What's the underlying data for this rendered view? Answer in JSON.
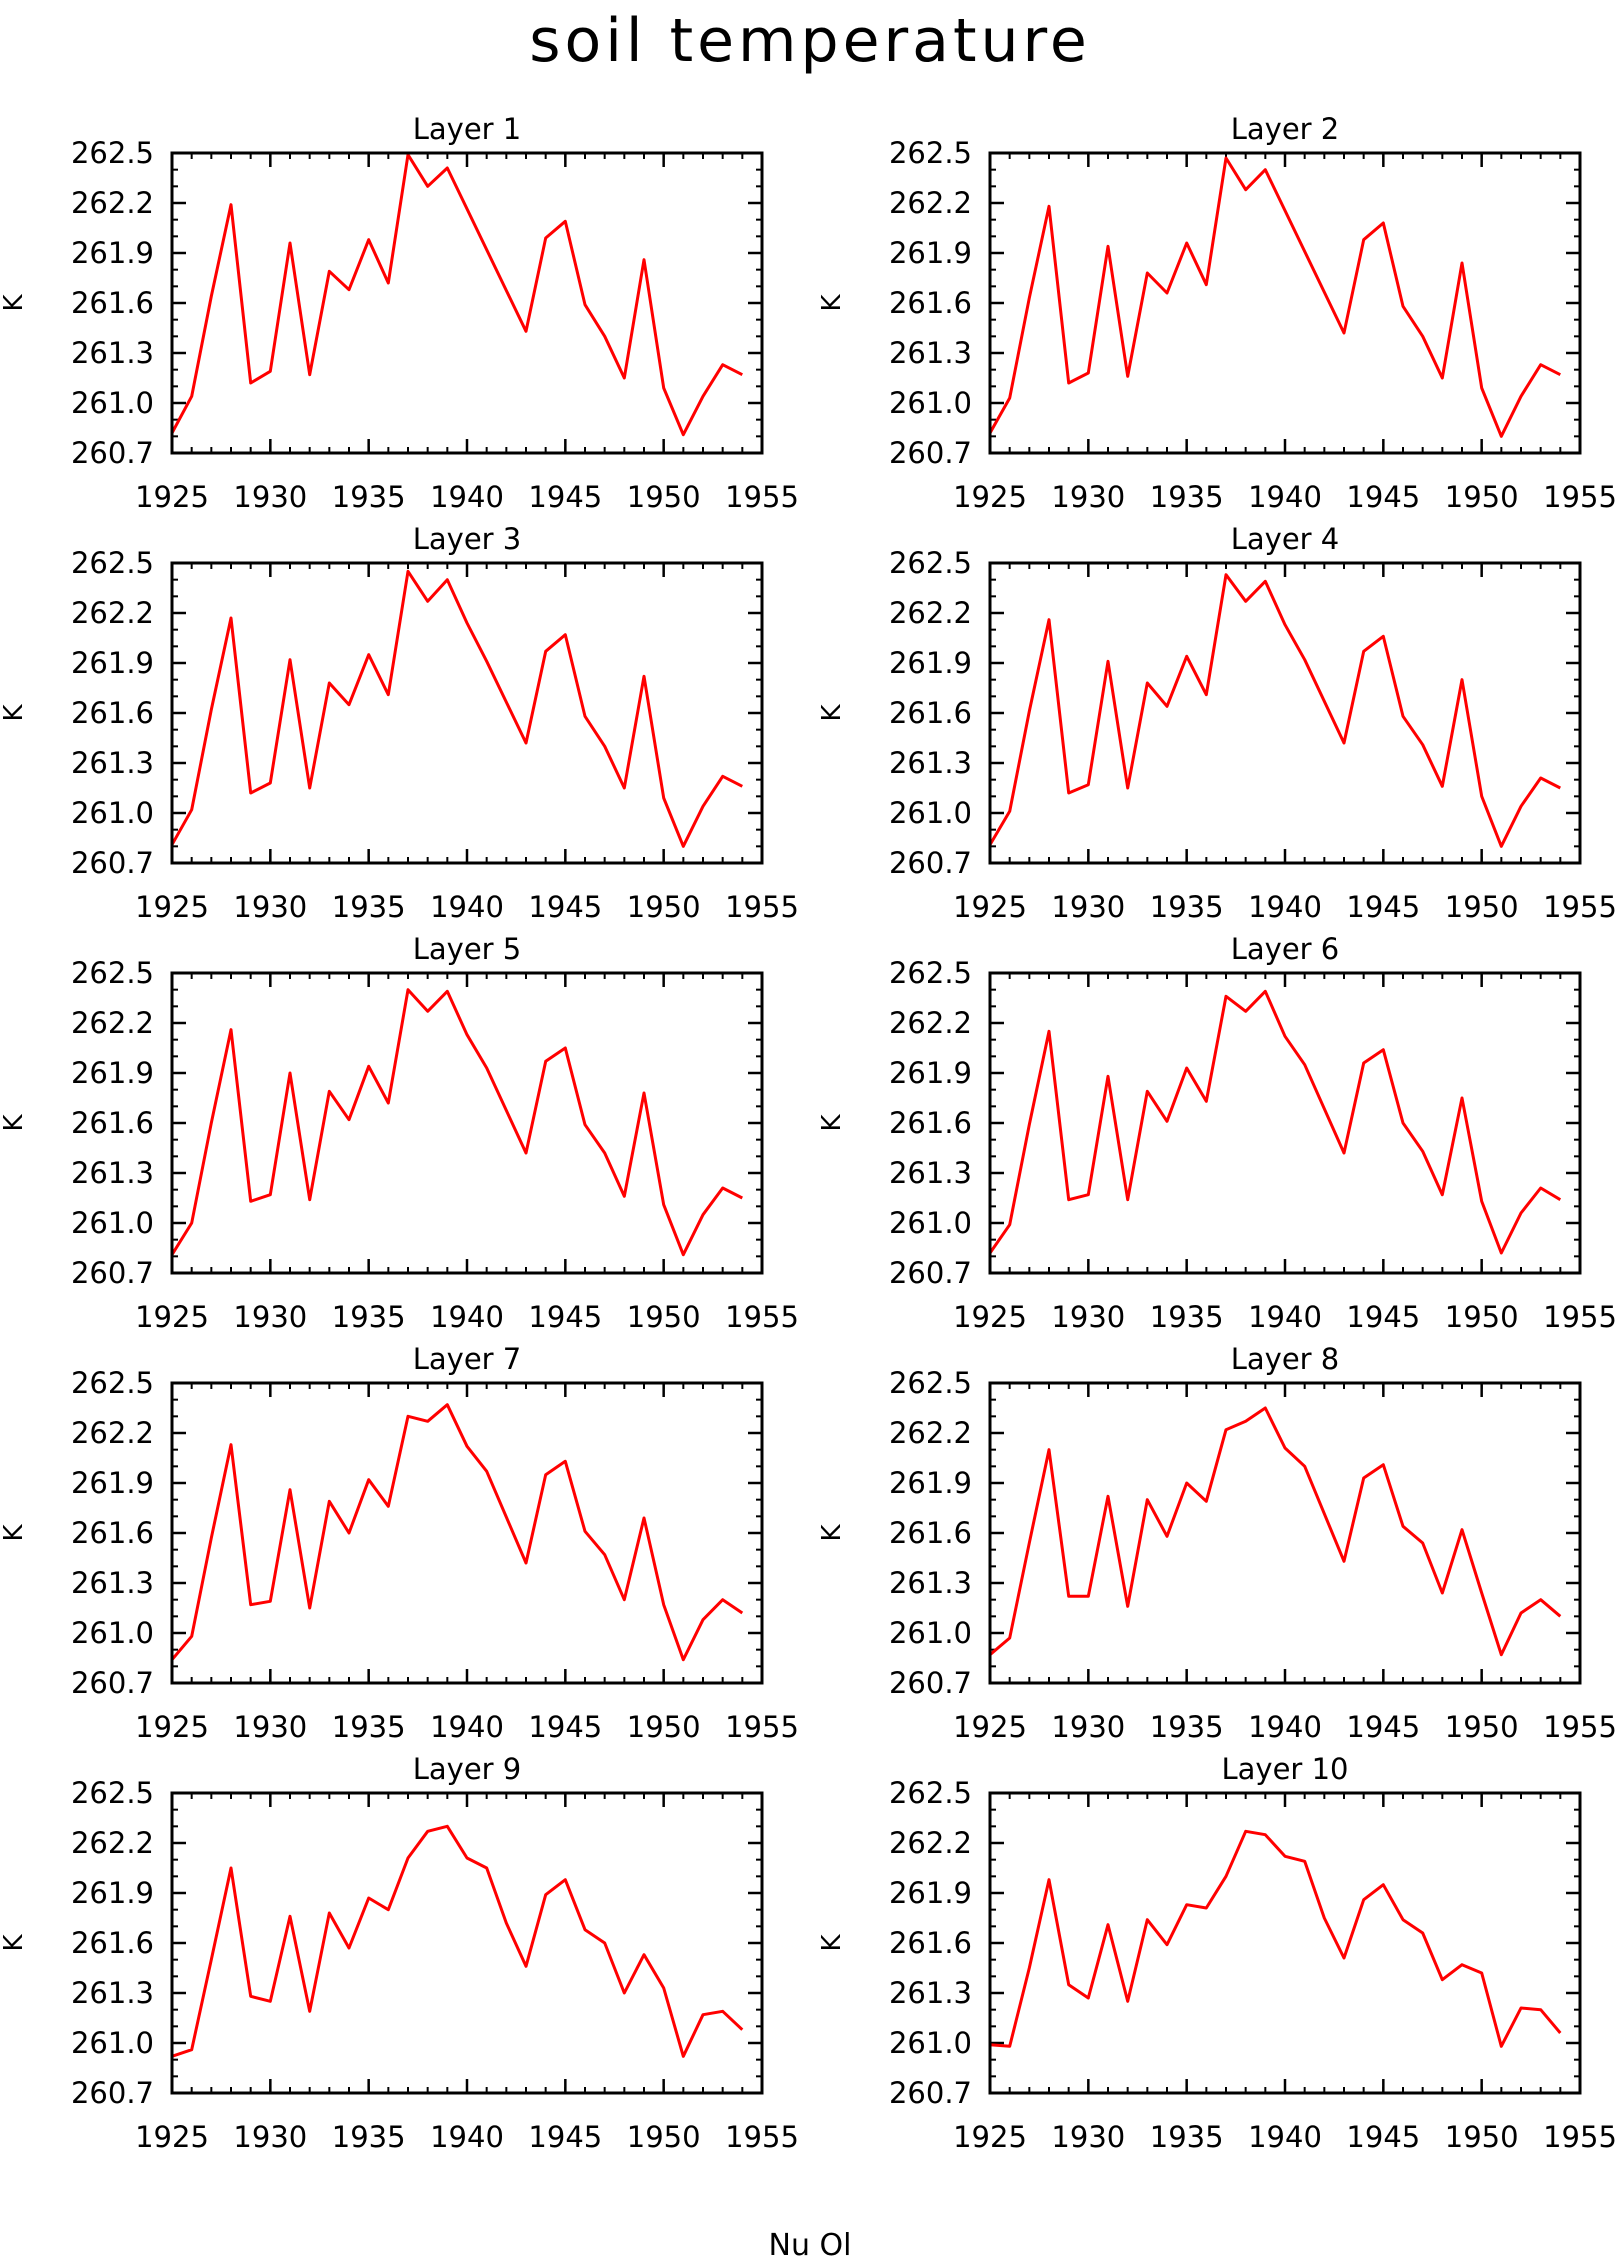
{
  "title": "soil temperature",
  "footer_text": "Nu Ol",
  "colors": {
    "line": "#ff0000",
    "axis": "#000000",
    "background": "#ffffff"
  },
  "chart_data": [
    {
      "type": "line",
      "title": "Layer 1",
      "ylabel": "K",
      "xlim": [
        1925,
        1955
      ],
      "ylim": [
        260.7,
        262.5
      ],
      "xticks": [
        "1925",
        "1930",
        "1935",
        "1940",
        "1945",
        "1950",
        "1955"
      ],
      "yticks": [
        "260.7",
        "261.0",
        "261.3",
        "261.6",
        "261.9",
        "262.2",
        "262.5"
      ],
      "x": [
        1925,
        1926,
        1927,
        1928,
        1929,
        1930,
        1931,
        1932,
        1933,
        1934,
        1935,
        1936,
        1937,
        1938,
        1939,
        1943,
        1944,
        1945,
        1946,
        1947,
        1948,
        1949,
        1950,
        1951,
        1952,
        1953,
        1954
      ],
      "series": [
        {
          "values": [
            260.82,
            261.04,
            261.64,
            262.19,
            261.12,
            261.19,
            261.96,
            261.17,
            261.79,
            261.68,
            261.98,
            261.72,
            262.49,
            262.3,
            262.41,
            261.43,
            261.99,
            262.09,
            261.59,
            261.4,
            261.15,
            261.86,
            261.09,
            260.81,
            261.04,
            261.23,
            261.17
          ]
        }
      ]
    },
    {
      "type": "line",
      "title": "Layer 2",
      "ylabel": "K",
      "xlim": [
        1925,
        1955
      ],
      "ylim": [
        260.7,
        262.5
      ],
      "xticks": [
        "1925",
        "1930",
        "1935",
        "1940",
        "1945",
        "1950",
        "1955"
      ],
      "yticks": [
        "260.7",
        "261.0",
        "261.3",
        "261.6",
        "261.9",
        "262.2",
        "262.5"
      ],
      "x": [
        1925,
        1926,
        1927,
        1928,
        1929,
        1930,
        1931,
        1932,
        1933,
        1934,
        1935,
        1936,
        1937,
        1938,
        1939,
        1943,
        1944,
        1945,
        1946,
        1947,
        1948,
        1949,
        1950,
        1951,
        1952,
        1953,
        1954
      ],
      "series": [
        {
          "values": [
            260.82,
            261.03,
            261.63,
            262.18,
            261.12,
            261.18,
            261.94,
            261.16,
            261.78,
            261.66,
            261.96,
            261.71,
            262.47,
            262.28,
            262.4,
            261.42,
            261.98,
            262.08,
            261.58,
            261.4,
            261.15,
            261.84,
            261.09,
            260.8,
            261.04,
            261.23,
            261.17
          ]
        }
      ]
    },
    {
      "type": "line",
      "title": "Layer 3",
      "ylabel": "K",
      "xlim": [
        1925,
        1955
      ],
      "ylim": [
        260.7,
        262.5
      ],
      "xticks": [
        "1925",
        "1930",
        "1935",
        "1940",
        "1945",
        "1950",
        "1955"
      ],
      "yticks": [
        "260.7",
        "261.0",
        "261.3",
        "261.6",
        "261.9",
        "262.2",
        "262.5"
      ],
      "x": [
        1925,
        1926,
        1927,
        1928,
        1929,
        1930,
        1931,
        1932,
        1933,
        1934,
        1935,
        1936,
        1937,
        1938,
        1939,
        1940,
        1941,
        1943,
        1944,
        1945,
        1946,
        1947,
        1948,
        1949,
        1950,
        1951,
        1952,
        1953,
        1954
      ],
      "series": [
        {
          "values": [
            260.81,
            261.02,
            261.62,
            262.17,
            261.12,
            261.18,
            261.92,
            261.15,
            261.78,
            261.65,
            261.95,
            261.71,
            262.45,
            262.27,
            262.4,
            262.14,
            261.91,
            261.42,
            261.97,
            262.07,
            261.58,
            261.4,
            261.15,
            261.82,
            261.09,
            260.8,
            261.04,
            261.22,
            261.16
          ]
        }
      ]
    },
    {
      "type": "line",
      "title": "Layer 4",
      "ylabel": "K",
      "xlim": [
        1925,
        1955
      ],
      "ylim": [
        260.7,
        262.5
      ],
      "xticks": [
        "1925",
        "1930",
        "1935",
        "1940",
        "1945",
        "1950",
        "1955"
      ],
      "yticks": [
        "260.7",
        "261.0",
        "261.3",
        "261.6",
        "261.9",
        "262.2",
        "262.5"
      ],
      "x": [
        1925,
        1926,
        1927,
        1928,
        1929,
        1930,
        1931,
        1932,
        1933,
        1934,
        1935,
        1936,
        1937,
        1938,
        1939,
        1940,
        1941,
        1943,
        1944,
        1945,
        1946,
        1947,
        1948,
        1949,
        1950,
        1951,
        1952,
        1953,
        1954
      ],
      "series": [
        {
          "values": [
            260.81,
            261.01,
            261.61,
            262.16,
            261.12,
            261.17,
            261.91,
            261.15,
            261.78,
            261.64,
            261.94,
            261.71,
            262.43,
            262.27,
            262.39,
            262.13,
            261.92,
            261.42,
            261.97,
            262.06,
            261.58,
            261.41,
            261.16,
            261.8,
            261.1,
            260.8,
            261.04,
            261.21,
            261.15
          ]
        }
      ]
    },
    {
      "type": "line",
      "title": "Layer 5",
      "ylabel": "K",
      "xlim": [
        1925,
        1955
      ],
      "ylim": [
        260.7,
        262.5
      ],
      "xticks": [
        "1925",
        "1930",
        "1935",
        "1940",
        "1945",
        "1950",
        "1955"
      ],
      "yticks": [
        "260.7",
        "261.0",
        "261.3",
        "261.6",
        "261.9",
        "262.2",
        "262.5"
      ],
      "x": [
        1925,
        1926,
        1927,
        1928,
        1929,
        1930,
        1931,
        1932,
        1933,
        1934,
        1935,
        1936,
        1937,
        1938,
        1939,
        1940,
        1941,
        1943,
        1944,
        1945,
        1946,
        1947,
        1948,
        1949,
        1950,
        1951,
        1952,
        1953,
        1954
      ],
      "series": [
        {
          "values": [
            260.81,
            261.0,
            261.6,
            262.16,
            261.13,
            261.17,
            261.9,
            261.14,
            261.79,
            261.62,
            261.94,
            261.72,
            262.4,
            262.27,
            262.39,
            262.13,
            261.93,
            261.42,
            261.97,
            262.05,
            261.59,
            261.42,
            261.16,
            261.78,
            261.11,
            260.81,
            261.05,
            261.21,
            261.15
          ]
        }
      ]
    },
    {
      "type": "line",
      "title": "Layer 6",
      "ylabel": "K",
      "xlim": [
        1925,
        1955
      ],
      "ylim": [
        260.7,
        262.5
      ],
      "xticks": [
        "1925",
        "1930",
        "1935",
        "1940",
        "1945",
        "1950",
        "1955"
      ],
      "yticks": [
        "260.7",
        "261.0",
        "261.3",
        "261.6",
        "261.9",
        "262.2",
        "262.5"
      ],
      "x": [
        1925,
        1926,
        1927,
        1928,
        1929,
        1930,
        1931,
        1932,
        1933,
        1934,
        1935,
        1936,
        1937,
        1938,
        1939,
        1940,
        1941,
        1943,
        1944,
        1945,
        1946,
        1947,
        1948,
        1949,
        1950,
        1951,
        1952,
        1953,
        1954
      ],
      "series": [
        {
          "values": [
            260.82,
            260.99,
            261.59,
            262.15,
            261.14,
            261.17,
            261.88,
            261.14,
            261.79,
            261.61,
            261.93,
            261.73,
            262.36,
            262.27,
            262.39,
            262.12,
            261.95,
            261.42,
            261.96,
            262.04,
            261.6,
            261.43,
            261.17,
            261.75,
            261.13,
            260.82,
            261.06,
            261.21,
            261.14
          ]
        }
      ]
    },
    {
      "type": "line",
      "title": "Layer 7",
      "ylabel": "K",
      "xlim": [
        1925,
        1955
      ],
      "ylim": [
        260.7,
        262.5
      ],
      "xticks": [
        "1925",
        "1930",
        "1935",
        "1940",
        "1945",
        "1950",
        "1955"
      ],
      "yticks": [
        "260.7",
        "261.0",
        "261.3",
        "261.6",
        "261.9",
        "262.2",
        "262.5"
      ],
      "x": [
        1925,
        1926,
        1927,
        1928,
        1929,
        1930,
        1931,
        1932,
        1933,
        1934,
        1935,
        1936,
        1937,
        1938,
        1939,
        1940,
        1941,
        1943,
        1944,
        1945,
        1946,
        1947,
        1948,
        1949,
        1950,
        1951,
        1952,
        1953,
        1954
      ],
      "series": [
        {
          "values": [
            260.84,
            260.98,
            261.57,
            262.13,
            261.17,
            261.19,
            261.86,
            261.15,
            261.79,
            261.6,
            261.92,
            261.76,
            262.3,
            262.27,
            262.37,
            262.12,
            261.97,
            261.42,
            261.95,
            262.03,
            261.61,
            261.47,
            261.2,
            261.69,
            261.17,
            260.84,
            261.08,
            261.2,
            261.12
          ]
        }
      ]
    },
    {
      "type": "line",
      "title": "Layer 8",
      "ylabel": "K",
      "xlim": [
        1925,
        1955
      ],
      "ylim": [
        260.7,
        262.5
      ],
      "xticks": [
        "1925",
        "1930",
        "1935",
        "1940",
        "1945",
        "1950",
        "1955"
      ],
      "yticks": [
        "260.7",
        "261.0",
        "261.3",
        "261.6",
        "261.9",
        "262.2",
        "262.5"
      ],
      "x": [
        1925,
        1926,
        1927,
        1928,
        1929,
        1930,
        1931,
        1932,
        1933,
        1934,
        1935,
        1936,
        1937,
        1938,
        1939,
        1940,
        1941,
        1943,
        1944,
        1945,
        1946,
        1947,
        1948,
        1949,
        1950,
        1951,
        1952,
        1953,
        1954
      ],
      "series": [
        {
          "values": [
            260.87,
            260.97,
            261.54,
            262.1,
            261.22,
            261.22,
            261.82,
            261.16,
            261.8,
            261.58,
            261.9,
            261.79,
            262.22,
            262.27,
            262.35,
            262.11,
            262.0,
            261.43,
            261.93,
            262.01,
            261.64,
            261.54,
            261.24,
            261.62,
            261.24,
            260.87,
            261.12,
            261.2,
            261.1
          ]
        }
      ]
    },
    {
      "type": "line",
      "title": "Layer 9",
      "ylabel": "K",
      "xlim": [
        1925,
        1955
      ],
      "ylim": [
        260.7,
        262.5
      ],
      "xticks": [
        "1925",
        "1930",
        "1935",
        "1940",
        "1945",
        "1950",
        "1955"
      ],
      "yticks": [
        "260.7",
        "261.0",
        "261.3",
        "261.6",
        "261.9",
        "262.2",
        "262.5"
      ],
      "x": [
        1925,
        1926,
        1927,
        1928,
        1929,
        1930,
        1931,
        1932,
        1933,
        1934,
        1935,
        1936,
        1937,
        1938,
        1939,
        1940,
        1941,
        1942,
        1943,
        1944,
        1945,
        1946,
        1947,
        1948,
        1949,
        1950,
        1951,
        1952,
        1953,
        1954
      ],
      "series": [
        {
          "values": [
            260.92,
            260.96,
            261.5,
            262.05,
            261.28,
            261.25,
            261.76,
            261.19,
            261.78,
            261.57,
            261.87,
            261.8,
            262.11,
            262.27,
            262.3,
            262.11,
            262.05,
            261.72,
            261.46,
            261.89,
            261.98,
            261.68,
            261.6,
            261.3,
            261.53,
            261.33,
            260.92,
            261.17,
            261.19,
            261.08
          ]
        }
      ]
    },
    {
      "type": "line",
      "title": "Layer 10",
      "ylabel": "K",
      "xlim": [
        1925,
        1955
      ],
      "ylim": [
        260.7,
        262.5
      ],
      "xticks": [
        "1925",
        "1930",
        "1935",
        "1940",
        "1945",
        "1950",
        "1955"
      ],
      "yticks": [
        "260.7",
        "261.0",
        "261.3",
        "261.6",
        "261.9",
        "262.2",
        "262.5"
      ],
      "x": [
        1925,
        1926,
        1927,
        1928,
        1929,
        1930,
        1931,
        1932,
        1933,
        1934,
        1935,
        1936,
        1937,
        1938,
        1939,
        1940,
        1941,
        1942,
        1943,
        1944,
        1945,
        1946,
        1947,
        1948,
        1949,
        1950,
        1951,
        1952,
        1953,
        1954
      ],
      "series": [
        {
          "values": [
            260.99,
            260.98,
            261.45,
            261.98,
            261.35,
            261.27,
            261.71,
            261.25,
            261.74,
            261.59,
            261.83,
            261.81,
            262.0,
            262.27,
            262.25,
            262.12,
            262.09,
            261.75,
            261.51,
            261.86,
            261.95,
            261.74,
            261.66,
            261.38,
            261.47,
            261.42,
            260.98,
            261.21,
            261.2,
            261.06
          ]
        }
      ]
    }
  ]
}
